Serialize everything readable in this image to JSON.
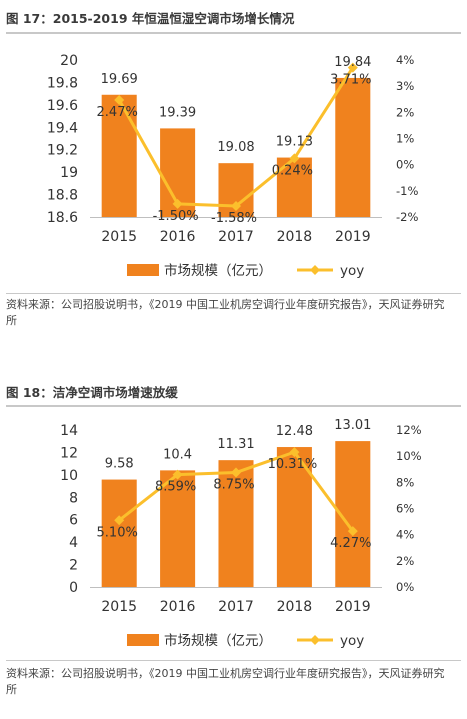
{
  "colors": {
    "bar": "#f0821e",
    "line": "#fbbf2c",
    "text": "#333333",
    "rule": "#c8c8c8"
  },
  "figures": [
    {
      "title": "图 17：2015-2019 年恒温恒湿空调市场增长情况",
      "source": "资料来源：公司招股说明书，《2019 中国工业机房空调行业年度研究报告》，天风证券研究所"
    },
    {
      "title": "图 18：洁净空调市场增速放缓",
      "source": "资料来源：公司招股说明书，《2019 中国工业机房空调行业年度研究报告》，天风证券研究所"
    }
  ],
  "chart_data": [
    {
      "type": "bar",
      "categories": [
        "2015",
        "2016",
        "2017",
        "2018",
        "2019"
      ],
      "series": [
        {
          "name": "市场规模（亿元）",
          "type": "bar",
          "axis": "left",
          "values": [
            19.69,
            19.39,
            19.08,
            19.13,
            19.84
          ],
          "labels": [
            "19.69",
            "19.39",
            "19.08",
            "19.13",
            "19.84"
          ]
        },
        {
          "name": "yoy",
          "type": "line",
          "axis": "right",
          "values": [
            2.47,
            -1.5,
            -1.58,
            0.24,
            3.71
          ],
          "labels": [
            "2.47%",
            "-1.50%",
            "-1.58%",
            "0.24%",
            "3.71%"
          ]
        }
      ],
      "yleft": {
        "min": 18.6,
        "max": 20,
        "ticks": [
          "18.6",
          "18.8",
          "19",
          "19.2",
          "19.4",
          "19.6",
          "19.8",
          "20"
        ]
      },
      "yright": {
        "min": -2,
        "max": 4,
        "ticks": [
          "-2%",
          "-1%",
          "0%",
          "1%",
          "2%",
          "3%",
          "4%"
        ]
      },
      "legend_position": "bottom",
      "grid": false
    },
    {
      "type": "bar",
      "categories": [
        "2015",
        "2016",
        "2017",
        "2018",
        "2019"
      ],
      "series": [
        {
          "name": "市场规模（亿元）",
          "type": "bar",
          "axis": "left",
          "values": [
            9.58,
            10.4,
            11.31,
            12.48,
            13.01
          ],
          "labels": [
            "9.58",
            "10.4",
            "11.31",
            "12.48",
            "13.01"
          ]
        },
        {
          "name": "yoy",
          "type": "line",
          "axis": "right",
          "values": [
            5.1,
            8.59,
            8.75,
            10.31,
            4.27
          ],
          "labels": [
            "5.10%",
            "8.59%",
            "8.75%",
            "10.31%",
            "4.27%"
          ]
        }
      ],
      "yleft": {
        "min": 0,
        "max": 14,
        "ticks": [
          "0",
          "2",
          "4",
          "6",
          "8",
          "10",
          "12",
          "14"
        ]
      },
      "yright": {
        "min": 0,
        "max": 12,
        "ticks": [
          "0%",
          "2%",
          "4%",
          "6%",
          "8%",
          "10%",
          "12%"
        ]
      },
      "legend_position": "bottom",
      "grid": false
    }
  ]
}
